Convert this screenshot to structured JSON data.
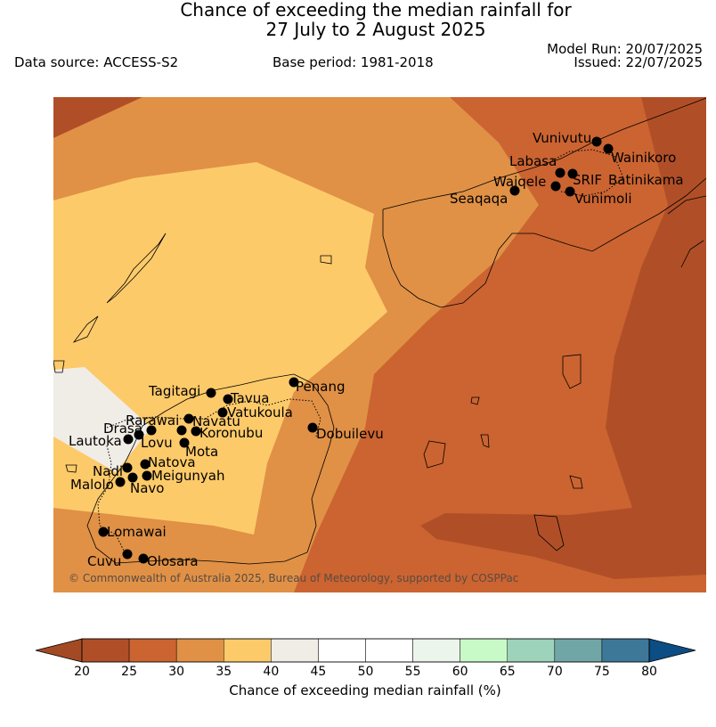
{
  "header": {
    "title_line1": "Chance of exceeding the median rainfall for",
    "title_line2": "27 July to 2 August 2025",
    "data_source": "Data source: ACCESS-S2",
    "base_period": "Base period: 1981-2018",
    "model_run": "Model Run: 20/07/2025",
    "issued": "Issued: 22/07/2025"
  },
  "map": {
    "copyright": "© Commonwealth of Australia 2025, Bureau of Meteorology, supported by COSPPac",
    "stations": [
      "Vunivutu",
      "Wainikoro",
      "Labasa",
      "SRIF",
      "Batinikama",
      "Waiqele",
      "Vunimoli",
      "Seaqaqa",
      "Penang",
      "Tagitagi",
      "Tavua",
      "Vatukoula",
      "Rarawai",
      "Navatu",
      "Koronubu",
      "Drasa",
      "Lautoka",
      "Lovu",
      "Mota",
      "Nadi",
      "Natova",
      "Meigunyah",
      "Malolo",
      "Navo",
      "Dobuilevu",
      "Lomawai",
      "Cuvu",
      "Olosara"
    ]
  },
  "colorbar": {
    "label": "Chance of exceeding median rainfall (%)",
    "ticks": [
      "20",
      "25",
      "30",
      "35",
      "40",
      "45",
      "50",
      "55",
      "60",
      "65",
      "70",
      "75",
      "80"
    ],
    "colors": [
      "#a34a24",
      "#b04f27",
      "#cb6431",
      "#e09146",
      "#fdca6a",
      "#f0ece6",
      "#ffffff",
      "#ffffff",
      "#ecf5ec",
      "#c8fac8",
      "#9dd3ba",
      "#71a6a6",
      "#3d7898",
      "#0c4d83"
    ]
  }
}
